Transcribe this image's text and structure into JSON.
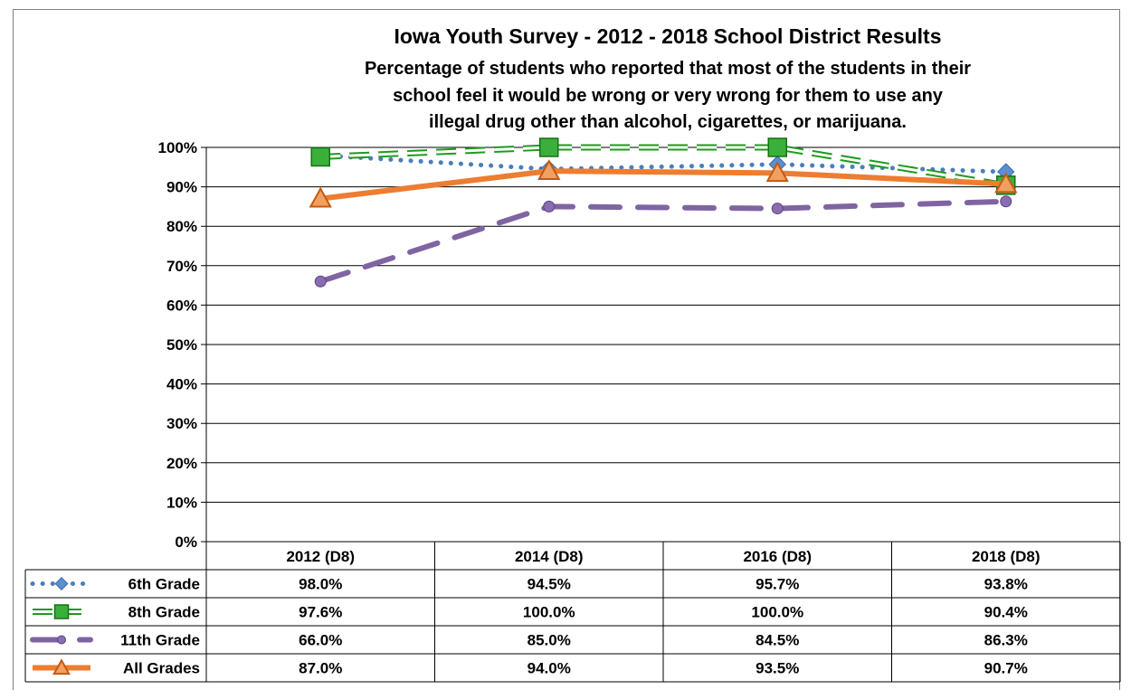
{
  "chart_data": {
    "type": "line",
    "title": "Iowa Youth Survey - 2012 - 2018 School District Results",
    "subtitle_lines": [
      "Percentage of students who reported that most of the students in their",
      "school feel it would be wrong or very wrong for them to use any",
      "illegal drug other than alcohol, cigarettes, or marijuana."
    ],
    "categories": [
      "2012 (D8)",
      "2014 (D8)",
      "2016 (D8)",
      "2018 (D8)"
    ],
    "y_ticks": [
      "0%",
      "10%",
      "20%",
      "30%",
      "40%",
      "50%",
      "60%",
      "70%",
      "80%",
      "90%",
      "100%"
    ],
    "ylim": [
      0,
      100
    ],
    "grid": true,
    "legend": "data-table",
    "series": [
      {
        "name": "6th Grade",
        "values": [
          98.0,
          94.5,
          95.7,
          93.8
        ],
        "labels": [
          "98.0%",
          "94.5%",
          "95.7%",
          "93.8%"
        ],
        "color": "#4a7ebb",
        "marker": "diamond",
        "style": "dotted"
      },
      {
        "name": "8th Grade",
        "values": [
          97.6,
          100.0,
          100.0,
          90.4
        ],
        "labels": [
          "97.6%",
          "100.0%",
          "100.0%",
          "90.4%"
        ],
        "color": "#1e9a1e",
        "marker": "square",
        "style": "double-dashed"
      },
      {
        "name": "11th Grade",
        "values": [
          66.0,
          85.0,
          84.5,
          86.3
        ],
        "labels": [
          "66.0%",
          "85.0%",
          "84.5%",
          "86.3%"
        ],
        "color": "#8064a2",
        "marker": "circle",
        "style": "long-dash"
      },
      {
        "name": "All Grades",
        "values": [
          87.0,
          94.0,
          93.5,
          90.7
        ],
        "labels": [
          "87.0%",
          "94.0%",
          "93.5%",
          "90.7%"
        ],
        "color": "#ed7d31",
        "marker": "triangle",
        "style": "solid"
      }
    ]
  }
}
